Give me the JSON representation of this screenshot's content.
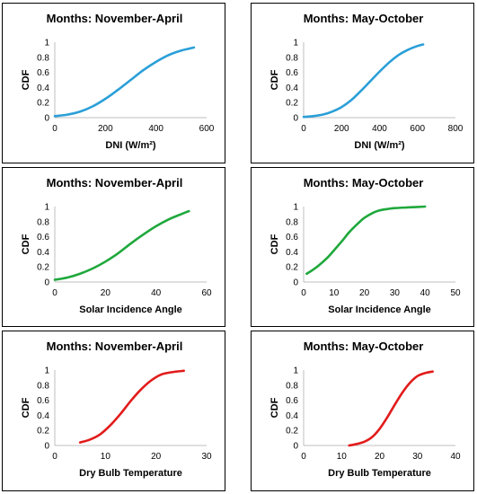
{
  "chart_data": [
    {
      "type": "line",
      "title": "Months: November-April",
      "xlabel": "DNI (W/m²)",
      "ylabel": "CDF",
      "xlim": [
        0,
        600
      ],
      "ylim": [
        0,
        1
      ],
      "xticks": [
        "0",
        "200",
        "400",
        "600"
      ],
      "yticks": [
        "0",
        "0.2",
        "0.4",
        "0.6",
        "0.8",
        "1"
      ],
      "series": [
        {
          "color": "#2a9fd8",
          "x": [
            0,
            50,
            100,
            150,
            200,
            250,
            300,
            350,
            400,
            450,
            500,
            550
          ],
          "y": [
            0.02,
            0.04,
            0.08,
            0.15,
            0.25,
            0.37,
            0.5,
            0.63,
            0.74,
            0.83,
            0.89,
            0.93
          ]
        }
      ]
    },
    {
      "type": "line",
      "title": "Months: May-October",
      "xlabel": "DNI (W/m²)",
      "ylabel": "CDF",
      "xlim": [
        0,
        800
      ],
      "ylim": [
        0,
        1
      ],
      "xticks": [
        "0",
        "200",
        "400",
        "600",
        "800"
      ],
      "yticks": [
        "0",
        "0.2",
        "0.4",
        "0.6",
        "0.8",
        "1"
      ],
      "series": [
        {
          "color": "#2a9fd8",
          "x": [
            0,
            50,
            100,
            150,
            200,
            250,
            300,
            350,
            400,
            450,
            500,
            550,
            600,
            630
          ],
          "y": [
            0.01,
            0.02,
            0.04,
            0.08,
            0.14,
            0.23,
            0.35,
            0.48,
            0.61,
            0.73,
            0.83,
            0.9,
            0.95,
            0.97
          ]
        }
      ]
    },
    {
      "type": "line",
      "title": "Months: November-April",
      "xlabel": "Solar Incidence Angle",
      "ylabel": "CDF",
      "xlim": [
        0,
        60
      ],
      "ylim": [
        0,
        1
      ],
      "xticks": [
        "0",
        "20",
        "40",
        "60"
      ],
      "yticks": [
        "0",
        "0.2",
        "0.4",
        "0.6",
        "0.8",
        "1"
      ],
      "series": [
        {
          "color": "#1fa83c",
          "x": [
            0,
            5,
            10,
            15,
            20,
            25,
            30,
            35,
            40,
            45,
            50,
            53
          ],
          "y": [
            0.03,
            0.06,
            0.11,
            0.18,
            0.27,
            0.38,
            0.51,
            0.63,
            0.74,
            0.83,
            0.9,
            0.94
          ]
        }
      ]
    },
    {
      "type": "line",
      "title": "Months: May-October",
      "xlabel": "Solar Incidence Angle",
      "ylabel": "CDF",
      "xlim": [
        0,
        50
      ],
      "ylim": [
        0,
        1
      ],
      "xticks": [
        "0",
        "10",
        "20",
        "30",
        "40",
        "50"
      ],
      "yticks": [
        "0",
        "0.2",
        "0.4",
        "0.6",
        "0.8",
        "1"
      ],
      "series": [
        {
          "color": "#1fa83c",
          "x": [
            1,
            3,
            5,
            8,
            10,
            13,
            15,
            18,
            20,
            23,
            25,
            28,
            30,
            35,
            40
          ],
          "y": [
            0.11,
            0.16,
            0.22,
            0.33,
            0.42,
            0.56,
            0.66,
            0.78,
            0.85,
            0.92,
            0.95,
            0.97,
            0.98,
            0.99,
            1.0
          ]
        }
      ]
    },
    {
      "type": "line",
      "title": "Months: November-April",
      "xlabel": "Dry Bulb Temperature",
      "ylabel": "CDF",
      "xlim": [
        0,
        30
      ],
      "ylim": [
        0,
        1
      ],
      "xticks": [
        "0",
        "10",
        "20",
        "30"
      ],
      "yticks": [
        "0",
        "0.2",
        "0.4",
        "0.6",
        "0.8",
        "1"
      ],
      "series": [
        {
          "color": "#e21b1b",
          "x": [
            5,
            7,
            9,
            11,
            13,
            15,
            17,
            19,
            21,
            23,
            25.5
          ],
          "y": [
            0.04,
            0.08,
            0.15,
            0.27,
            0.42,
            0.59,
            0.74,
            0.86,
            0.94,
            0.97,
            0.99
          ]
        }
      ]
    },
    {
      "type": "line",
      "title": "Months: May-October",
      "xlabel": "Dry Bulb Temperature",
      "ylabel": "CDF",
      "xlim": [
        0,
        40
      ],
      "ylim": [
        0,
        1
      ],
      "xticks": [
        "0",
        "10",
        "20",
        "30",
        "40"
      ],
      "yticks": [
        "0",
        "0.2",
        "0.4",
        "0.6",
        "0.8",
        "1"
      ],
      "series": [
        {
          "color": "#e21b1b",
          "x": [
            12,
            14,
            16,
            18,
            20,
            22,
            24,
            26,
            28,
            30,
            32,
            34
          ],
          "y": [
            0.0,
            0.02,
            0.05,
            0.11,
            0.22,
            0.37,
            0.54,
            0.7,
            0.83,
            0.92,
            0.96,
            0.98
          ]
        }
      ]
    }
  ]
}
